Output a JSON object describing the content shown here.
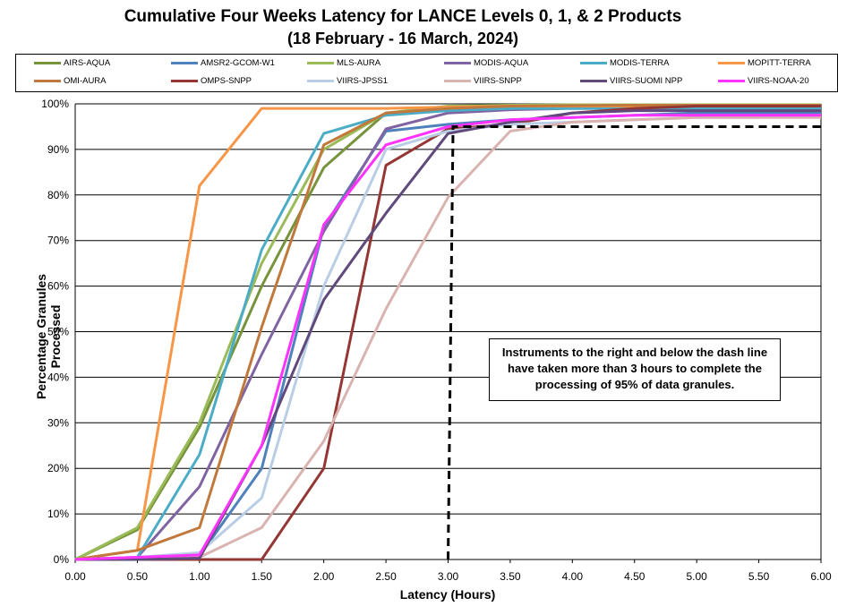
{
  "chart_data": {
    "type": "line",
    "title": "Cumulative Four Weeks Latency  for LANCE Levels 0, 1, & 2 Products",
    "subtitle": "(18  February   -  16  March,  2024)",
    "xlabel": "Latency (Hours)",
    "ylabel": "Percentage Granules Processed",
    "xlim": [
      0,
      6
    ],
    "ylim": [
      0,
      100
    ],
    "x_ticks": [
      "0.00",
      "0.50",
      "1.00",
      "1.50",
      "2.00",
      "2.50",
      "3.00",
      "3.50",
      "4.00",
      "4.50",
      "5.00",
      "5.50",
      "6.00"
    ],
    "y_ticks": [
      "0%",
      "10%",
      "20%",
      "30%",
      "40%",
      "50%",
      "60%",
      "70%",
      "80%",
      "90%",
      "100%"
    ],
    "grid": "horizontal",
    "legend_position": "top",
    "x": [
      0,
      0.5,
      1.0,
      1.5,
      2.0,
      2.5,
      3.0,
      3.5,
      4.0,
      4.5,
      5.0,
      5.5,
      6.0
    ],
    "series": [
      {
        "name": "AIRS-AQUA",
        "color": "#77933C",
        "values": [
          0,
          6.5,
          29,
          60,
          86,
          98,
          99.3,
          99.6,
          99.7,
          99.8,
          99.8,
          99.8,
          99.8
        ]
      },
      {
        "name": "AMSR2-GCOM-W1",
        "color": "#4F81BD",
        "values": [
          0,
          0.5,
          0.8,
          20,
          73,
          94,
          95.5,
          96.5,
          97,
          97.5,
          98,
          98,
          98
        ]
      },
      {
        "name": "MLS-AURA",
        "color": "#9BBB59",
        "values": [
          0,
          7,
          30,
          65,
          90,
          98,
          99.5,
          99.7,
          99.8,
          99.8,
          99.8,
          99.8,
          99.8
        ]
      },
      {
        "name": "MODIS-AQUA",
        "color": "#8064A2",
        "values": [
          0,
          0.5,
          16,
          45,
          72,
          94.5,
          98,
          98.7,
          99,
          99,
          99,
          99,
          99
        ]
      },
      {
        "name": "MODIS-TERRA",
        "color": "#4BACC6",
        "values": [
          0,
          0.5,
          23,
          68,
          93.5,
          97.5,
          98.5,
          99,
          99,
          99,
          99,
          99,
          99
        ]
      },
      {
        "name": "MOPITT-TERRA",
        "color": "#F79646",
        "values": [
          0,
          2,
          82,
          99,
          99,
          99,
          99.3,
          99.5,
          99.5,
          99.5,
          99.5,
          99.5,
          99.5
        ]
      },
      {
        "name": "OMI-AURA",
        "color": "#C0783C",
        "values": [
          0,
          2,
          7,
          51,
          91,
          98,
          99,
          99.5,
          99.6,
          99.7,
          99.7,
          99.7,
          99.7
        ]
      },
      {
        "name": "OMPS-SNPP",
        "color": "#943634",
        "values": [
          0,
          0,
          0,
          0,
          20,
          86.5,
          94.5,
          95.5,
          98,
          99,
          99.5,
          99.5,
          99.5
        ]
      },
      {
        "name": "VIIRS-JPSS1",
        "color": "#B9CDE5",
        "values": [
          0,
          0.5,
          1.5,
          13.5,
          60,
          90,
          94,
          95.5,
          96,
          96.5,
          97,
          97,
          97.5
        ]
      },
      {
        "name": "VIIRS-SNPP",
        "color": "#D9B3B0",
        "values": [
          0,
          0,
          0.5,
          7,
          26,
          55,
          79.5,
          94,
          96,
          96.5,
          97,
          97,
          97
        ]
      },
      {
        "name": "VIIRS-SUOMI NPP",
        "color": "#604A7B",
        "values": [
          0,
          0,
          0.3,
          25,
          57,
          76,
          93.5,
          96,
          98,
          98.5,
          98.5,
          98.5,
          98.5
        ]
      },
      {
        "name": "VIIRS-NOAA-20",
        "color": "#FF33FF",
        "values": [
          0,
          0.5,
          1,
          25,
          73.5,
          91,
          95,
          96.5,
          97,
          97.5,
          97.5,
          97.5,
          97.5
        ]
      }
    ],
    "threshold": {
      "x": 3.0,
      "y": 95,
      "style": "dashed",
      "color": "#000000"
    },
    "annotation": "Instruments to the right and below the dash line have taken more than 3 hours to complete the processing of 95% of data granules."
  }
}
